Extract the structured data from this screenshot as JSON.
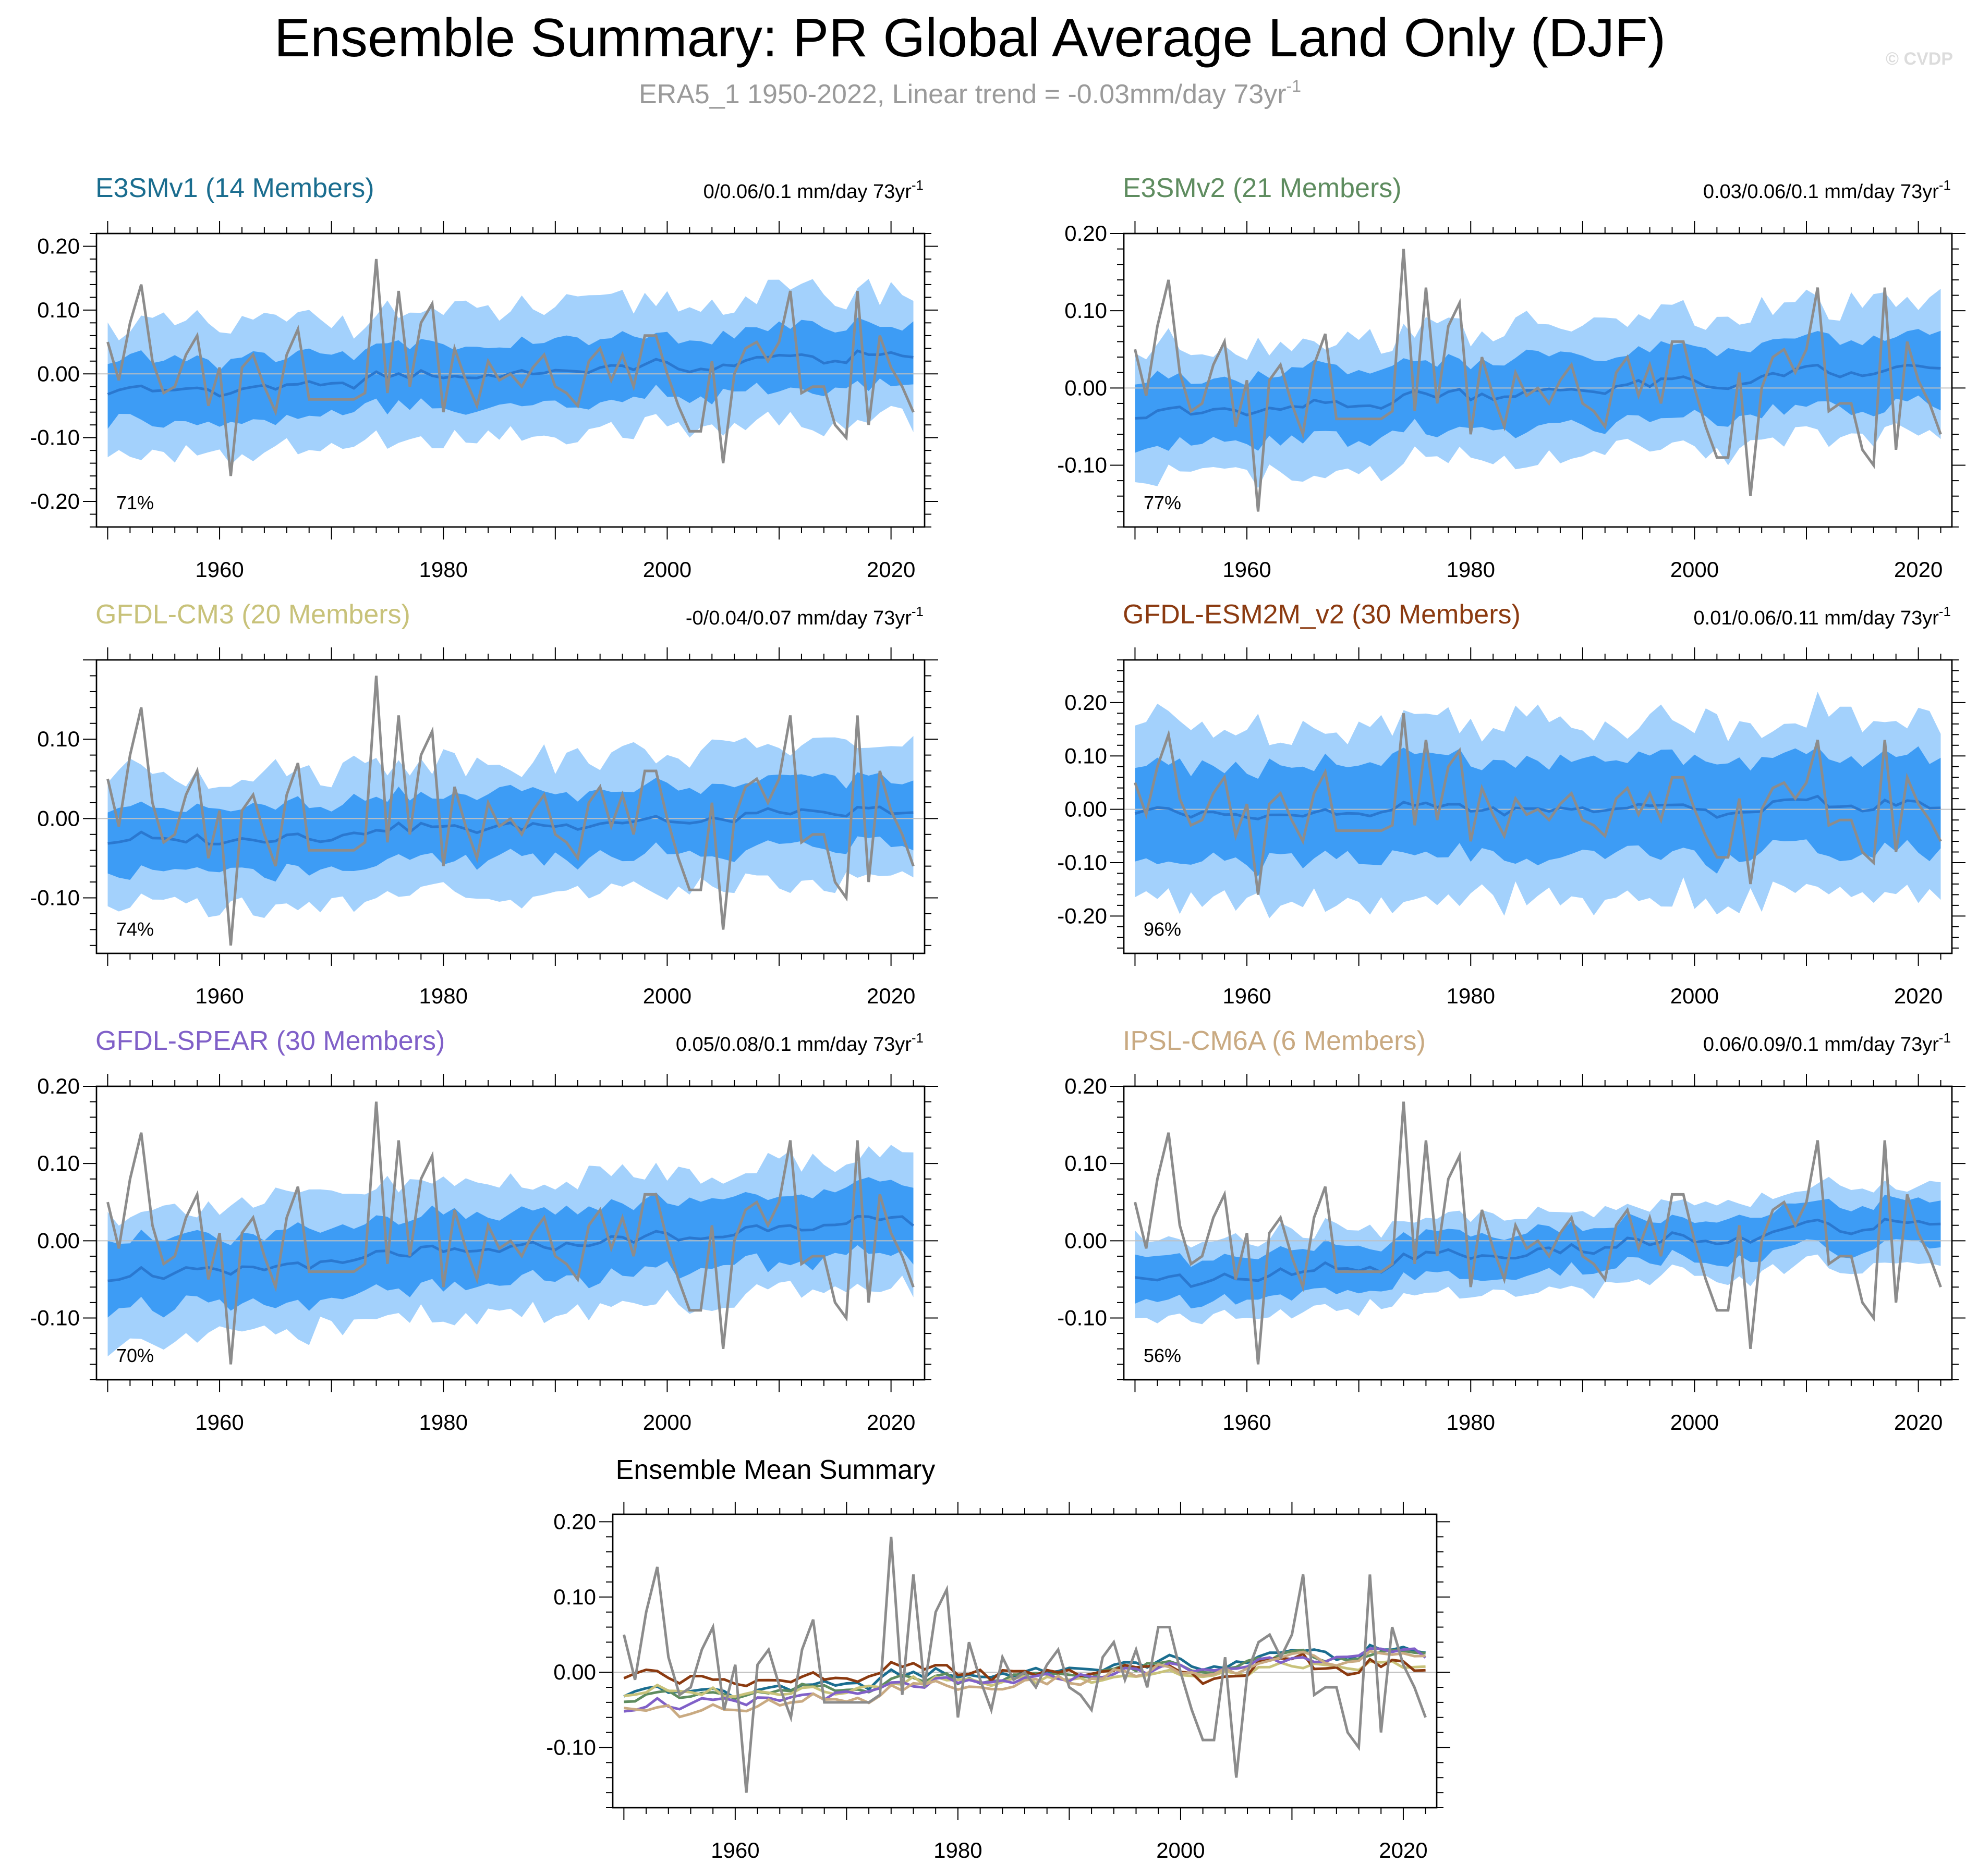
{
  "title": "Ensemble Summary: PR Global Average Land Only (DJF)",
  "subtitle": {
    "text": "ERA5_1 1950-2022, Linear trend = -0.03mm/day 73yr",
    "sup": "-1"
  },
  "watermark": "© CVDP",
  "unit_suffix": "mm/day 73yr",
  "unit_sup": "-1",
  "colors": {
    "outer_band": "#a3d1fc",
    "inner_band": "#3d9cf5",
    "ens_mean": "#2a78d0",
    "obs": "#8c8c8c",
    "zero_line": "#c0c0c0"
  },
  "chart_data": [
    {
      "type": "area",
      "title": "E3SMv1 (14 Members)",
      "title_color": "#1a6d8f",
      "trend": "0/0.06/0.1",
      "percent": "71%",
      "xlim": [
        1949,
        2023
      ],
      "ylim": [
        -0.24,
        0.22
      ],
      "yticks": [
        0.2,
        0.1,
        0.0,
        -0.1,
        -0.2
      ],
      "yticklabels": [
        "0.20",
        "0.10",
        "0.00",
        "-0.10",
        "-0.20"
      ],
      "xticks": [
        1960,
        1980,
        2000,
        2020
      ],
      "mean_offset": 0.0,
      "trend_slope": 0.0009,
      "amp": 1.0,
      "inner_hw": 0.048,
      "outer_hw": 0.1
    },
    {
      "type": "area",
      "title": "E3SMv2 (21 Members)",
      "title_color": "#5e8c5f",
      "trend": "0.03/0.06/0.1",
      "percent": "77%",
      "xlim": [
        1949,
        2023
      ],
      "ylim": [
        -0.18,
        0.2
      ],
      "yticks": [
        0.2,
        0.1,
        0.0,
        -0.1
      ],
      "yticklabels": [
        "0.20",
        "0.10",
        "0.00",
        "-0.10"
      ],
      "xticks": [
        1960,
        1980,
        2000,
        2020
      ],
      "mean_offset": -0.005,
      "trend_slope": 0.0009,
      "amp": 0.9,
      "inner_hw": 0.045,
      "outer_hw": 0.085
    },
    {
      "type": "area",
      "title": "GFDL-CM3 (20 Members)",
      "title_color": "#c8c27a",
      "trend": "-0/0.04/0.07",
      "percent": "74%",
      "xlim": [
        1949,
        2023
      ],
      "ylim": [
        -0.17,
        0.2
      ],
      "yticks": [
        0.1,
        0.0,
        -0.1
      ],
      "yticklabels": [
        "0.10",
        "0.00",
        "-0.10"
      ],
      "xticks": [
        1960,
        1980,
        2000,
        2020
      ],
      "mean_offset": -0.01,
      "trend_slope": 0.0006,
      "amp": 0.7,
      "inner_hw": 0.042,
      "outer_hw": 0.085
    },
    {
      "type": "area",
      "title": "GFDL-ESM2M_v2 (30 Members)",
      "title_color": "#8b3a10",
      "trend": "0.01/0.06/0.11",
      "percent": "96%",
      "xlim": [
        1949,
        2023
      ],
      "ylim": [
        -0.27,
        0.28
      ],
      "yticks": [
        0.2,
        0.1,
        0.0,
        -0.1,
        -0.2
      ],
      "yticklabels": [
        "0.20",
        "0.10",
        "0.00",
        "-0.10",
        "-0.20"
      ],
      "xticks": [
        1960,
        1980,
        2000,
        2020
      ],
      "mean_offset": 0.0,
      "trend_slope": 0.0003,
      "amp": 1.5,
      "inner_hw": 0.09,
      "outer_hw": 0.165
    },
    {
      "type": "area",
      "title": "GFDL-SPEAR (30 Members)",
      "title_color": "#8060c8",
      "trend": "0.05/0.08/0.1",
      "percent": "70%",
      "xlim": [
        1949,
        2023
      ],
      "ylim": [
        -0.18,
        0.2
      ],
      "yticks": [
        0.2,
        0.1,
        0.0,
        -0.1
      ],
      "yticklabels": [
        "0.20",
        "0.10",
        "0.00",
        "-0.10"
      ],
      "xticks": [
        1960,
        1980,
        2000,
        2020
      ],
      "mean_offset": -0.01,
      "trend_slope": 0.0011,
      "amp": 0.7,
      "inner_hw": 0.045,
      "outer_hw": 0.085
    },
    {
      "type": "area",
      "title": "IPSL-CM6A (6 Members)",
      "title_color": "#c9aa82",
      "trend": "0.06/0.09/0.1",
      "percent": "56%",
      "xlim": [
        1949,
        2023
      ],
      "ylim": [
        -0.18,
        0.2
      ],
      "yticks": [
        0.2,
        0.1,
        0.0,
        -0.1
      ],
      "yticklabels": [
        "0.20",
        "0.10",
        "0.00",
        "-0.10"
      ],
      "xticks": [
        1960,
        1980,
        2000,
        2020
      ],
      "mean_offset": -0.015,
      "trend_slope": 0.0012,
      "amp": 1.2,
      "inner_hw": 0.028,
      "outer_hw": 0.05
    },
    {
      "type": "line",
      "title": "Ensemble Mean Summary",
      "xlim": [
        1949,
        2023
      ],
      "ylim": [
        -0.18,
        0.21
      ],
      "yticks": [
        0.2,
        0.1,
        0.0,
        -0.1
      ],
      "yticklabels": [
        "0.20",
        "0.10",
        "0.00",
        "-0.10"
      ],
      "xticks": [
        1960,
        1980,
        2000,
        2020
      ],
      "series": [
        {
          "name": "E3SMv1",
          "color": "#1a6d8f"
        },
        {
          "name": "E3SMv2",
          "color": "#5e8c5f"
        },
        {
          "name": "GFDL-CM3",
          "color": "#c8c27a"
        },
        {
          "name": "GFDL-ESM2M_v2",
          "color": "#8b3a10"
        },
        {
          "name": "GFDL-SPEAR",
          "color": "#8060c8"
        },
        {
          "name": "IPSL-CM6A",
          "color": "#c9aa82"
        }
      ]
    }
  ],
  "obs": {
    "name": "ERA5_1",
    "years": [
      1950,
      2022
    ],
    "values": [
      0.05,
      -0.01,
      0.08,
      0.14,
      0.02,
      -0.03,
      -0.02,
      0.03,
      0.06,
      -0.05,
      0.01,
      -0.16,
      0.01,
      0.03,
      -0.02,
      -0.06,
      0.03,
      0.07,
      -0.04,
      -0.04,
      -0.04,
      -0.04,
      -0.04,
      -0.03,
      0.18,
      -0.03,
      0.13,
      -0.02,
      0.08,
      0.11,
      -0.06,
      0.04,
      -0.01,
      -0.05,
      0.02,
      -0.01,
      0.0,
      -0.02,
      0.01,
      0.03,
      -0.02,
      -0.03,
      -0.05,
      0.02,
      0.04,
      -0.01,
      0.03,
      -0.02,
      0.06,
      0.06,
      0.0,
      -0.05,
      -0.09,
      -0.09,
      0.02,
      -0.14,
      0.0,
      0.04,
      0.05,
      0.02,
      0.05,
      0.13,
      -0.03,
      -0.02,
      -0.02,
      -0.08,
      -0.1,
      0.13,
      -0.08,
      0.06,
      0.01,
      -0.02,
      -0.06
    ]
  }
}
